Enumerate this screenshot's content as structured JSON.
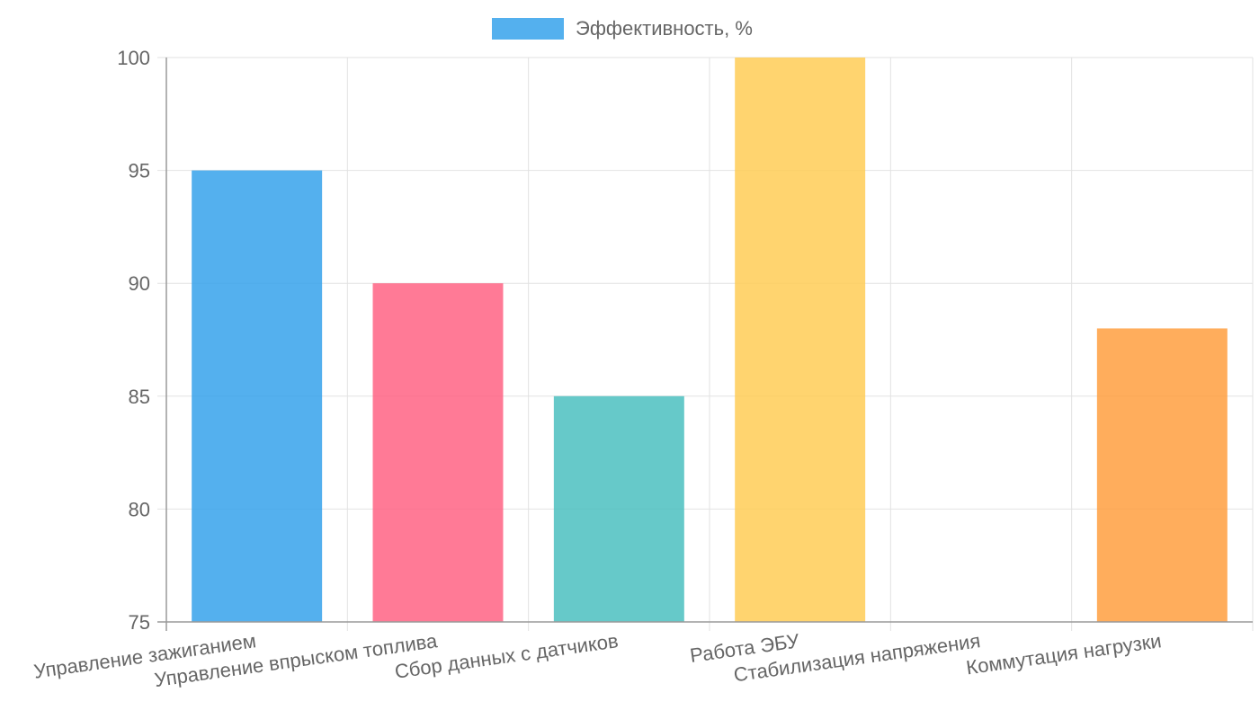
{
  "chart_data": {
    "type": "bar",
    "title": "",
    "xlabel": "",
    "ylabel": "",
    "categories": [
      "Управление зажиганием",
      "Управление впрыском топлива",
      "Сбор данных с датчиков",
      "Работа ЭБУ",
      "Стабилизация напряжения",
      "Коммутация нагрузки"
    ],
    "series": [
      {
        "name": "Эффективность, %",
        "values": [
          95,
          90,
          85,
          100,
          75,
          88
        ]
      }
    ],
    "bar_colors": [
      "#36A2EB",
      "#FF6384",
      "#4BC0C0",
      "#FFCD56",
      "#9966FF",
      "#FF9F40"
    ],
    "ylim": [
      75,
      100
    ],
    "yticks": [
      75,
      80,
      85,
      90,
      95,
      100
    ],
    "grid": true,
    "legend_position": "top-center"
  }
}
